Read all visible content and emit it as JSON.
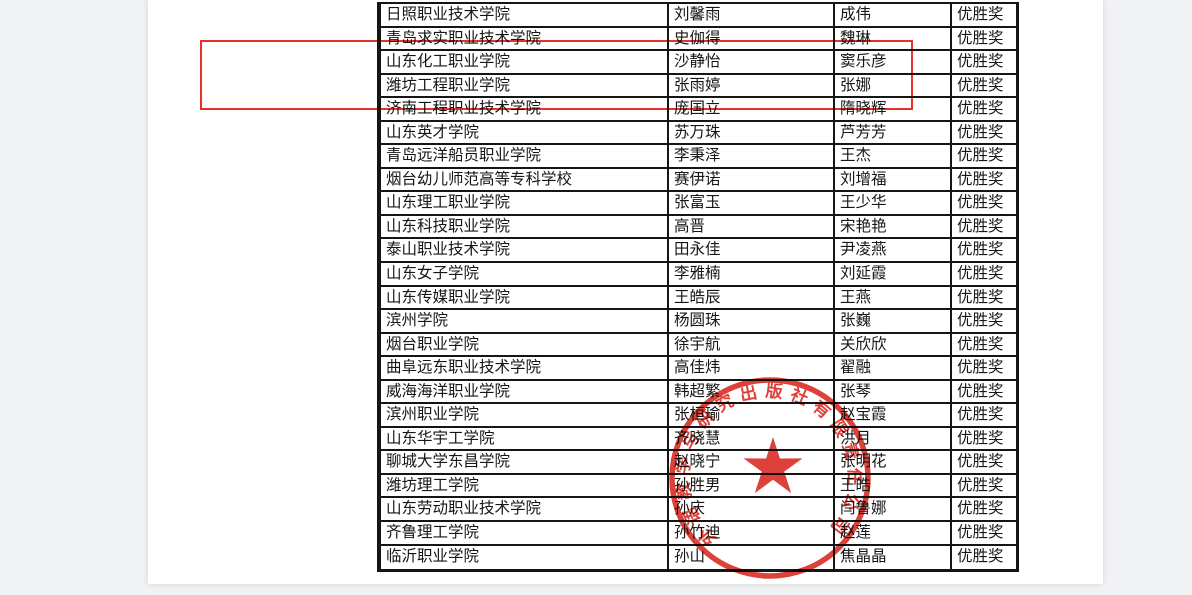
{
  "viewer": {
    "background_color": "#f1f2f4",
    "page_color": "#ffffff"
  },
  "table": {
    "border_color": "#151515",
    "award_label": "优胜奖",
    "rows": [
      [
        "日照职业技术学院",
        "刘馨雨",
        "成伟",
        "优胜奖"
      ],
      [
        "青岛求实职业技术学院",
        "史伽得",
        "魏琳",
        "优胜奖"
      ],
      [
        "山东化工职业学院",
        "沙静怡",
        "窦乐彦",
        "优胜奖"
      ],
      [
        "潍坊工程职业学院",
        "张雨婷",
        "张娜",
        "优胜奖"
      ],
      [
        "济南工程职业技术学院",
        "庞国立",
        "隋晓辉",
        "优胜奖"
      ],
      [
        "山东英才学院",
        "苏万珠",
        "芦芳芳",
        "优胜奖"
      ],
      [
        "青岛远洋船员职业学院",
        "李秉泽",
        "王杰",
        "优胜奖"
      ],
      [
        "烟台幼儿师范高等专科学校",
        "赛伊诺",
        "刘增福",
        "优胜奖"
      ],
      [
        "山东理工职业学院",
        "张富玉",
        "王少华",
        "优胜奖"
      ],
      [
        "山东科技职业学院",
        "高晋",
        "宋艳艳",
        "优胜奖"
      ],
      [
        "泰山职业技术学院",
        "田永佳",
        "尹凌燕",
        "优胜奖"
      ],
      [
        "山东女子学院",
        "李雅楠",
        "刘延霞",
        "优胜奖"
      ],
      [
        "山东传媒职业学院",
        "王皓辰",
        "王燕",
        "优胜奖"
      ],
      [
        "滨州学院",
        "杨圆珠",
        "张巍",
        "优胜奖"
      ],
      [
        "烟台职业学院",
        "徐宇航",
        "关欣欣",
        "优胜奖"
      ],
      [
        "曲阜远东职业技术学院",
        "高佳炜",
        "翟融",
        "优胜奖"
      ],
      [
        "威海海洋职业学院",
        "韩超繁",
        "张琴",
        "优胜奖"
      ],
      [
        "滨州职业学院",
        "张桓瑜",
        "赵宝霞",
        "优胜奖"
      ],
      [
        "山东华宇工学院",
        "齐晓慧",
        "洪月",
        "优胜奖"
      ],
      [
        "聊城大学东昌学院",
        "赵晓宁",
        "张明花",
        "优胜奖"
      ],
      [
        "潍坊理工学院",
        "孙胜男",
        "王皓",
        "优胜奖"
      ],
      [
        "山东劳动职业技术学院",
        "孙庆",
        "闫鲁娜",
        "优胜奖"
      ],
      [
        "齐鲁理工学院",
        "孙竹迪",
        "赵莲",
        "优胜奖"
      ],
      [
        "临沂职业学院",
        "孙山",
        "焦晶晶",
        "优胜奖"
      ]
    ]
  },
  "annotations": {
    "highlight_rect_color": "#e8312a"
  },
  "stamp": {
    "arc_text": "外语教学与研究出版社有限责任公司",
    "color": "#d7271d",
    "star_icon": "red-star"
  }
}
